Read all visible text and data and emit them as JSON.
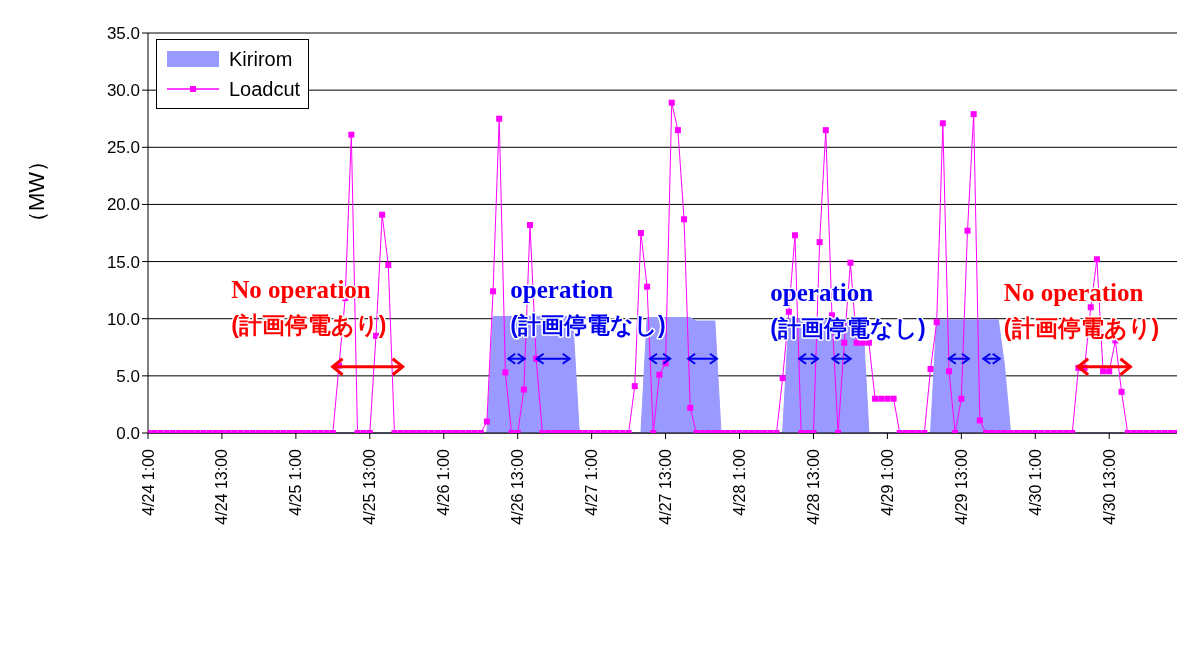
{
  "chart_data": {
    "type": "line",
    "ylabel": "（MW）",
    "categories": [
      "4/24 1:00",
      null,
      null,
      null,
      null,
      null,
      null,
      null,
      null,
      null,
      null,
      null,
      "4/24 13:00",
      null,
      null,
      null,
      null,
      null,
      null,
      null,
      null,
      null,
      null,
      null,
      "4/25 1:00",
      null,
      null,
      null,
      null,
      null,
      null,
      null,
      null,
      null,
      null,
      null,
      "4/25 13:00",
      null,
      null,
      null,
      null,
      null,
      null,
      null,
      null,
      null,
      null,
      null,
      "4/26 1:00",
      null,
      null,
      null,
      null,
      null,
      null,
      null,
      null,
      null,
      null,
      null,
      "4/26 13:00",
      null,
      null,
      null,
      null,
      null,
      null,
      null,
      null,
      null,
      null,
      null,
      "4/27 1:00",
      null,
      null,
      null,
      null,
      null,
      null,
      null,
      null,
      null,
      null,
      null,
      "4/27 13:00",
      null,
      null,
      null,
      null,
      null,
      null,
      null,
      null,
      null,
      null,
      null,
      "4/28 1:00",
      null,
      null,
      null,
      null,
      null,
      null,
      null,
      null,
      null,
      null,
      null,
      "4/28 13:00",
      null,
      null,
      null,
      null,
      null,
      null,
      null,
      null,
      null,
      null,
      null,
      "4/29 1:00",
      null,
      null,
      null,
      null,
      null,
      null,
      null,
      null,
      null,
      null,
      null,
      "4/29 13:00",
      null,
      null,
      null,
      null,
      null,
      null,
      null,
      null,
      null,
      null,
      null,
      "4/30 1:00",
      null,
      null,
      null,
      null,
      null,
      null,
      null,
      null,
      null,
      null,
      null,
      "4/30 13:00",
      null,
      null,
      null,
      null,
      null,
      null,
      null,
      null,
      null,
      null,
      null
    ],
    "series": [
      {
        "name": "Kirirom",
        "type": "area",
        "color": "#9999ff",
        "values": [
          0,
          0,
          0,
          0,
          0,
          0,
          0,
          0,
          0,
          0,
          0,
          0,
          0,
          0,
          0,
          0,
          0,
          0,
          0,
          0,
          0,
          0,
          0,
          0,
          0,
          0,
          0,
          0,
          0,
          0,
          0,
          0,
          0,
          0,
          0,
          0,
          0,
          0,
          0,
          0,
          0,
          0,
          0,
          0,
          0,
          0,
          0,
          0,
          0,
          0,
          0,
          0,
          0,
          0,
          0,
          0,
          10.2,
          10.2,
          10.2,
          10.2,
          10.2,
          10.2,
          10.2,
          10.2,
          10.2,
          10.2,
          10.2,
          10.2,
          10.2,
          9.3,
          0,
          0,
          0,
          0,
          0,
          0,
          0,
          0,
          0,
          0,
          0,
          10.1,
          10.1,
          10.1,
          10.1,
          10.1,
          10.1,
          10.1,
          10.1,
          9.8,
          9.8,
          9.8,
          9.8,
          0,
          0,
          0,
          0,
          0,
          0,
          0,
          0,
          0,
          0,
          0,
          10.0,
          10.0,
          10.0,
          10.0,
          10.0,
          10.0,
          9.9,
          9.9,
          9.9,
          9.9,
          9.9,
          9.9,
          9.9,
          0,
          0,
          0,
          0,
          0,
          0,
          0,
          0,
          0,
          0,
          0,
          9.9,
          9.9,
          9.9,
          9.9,
          9.9,
          9.9,
          9.9,
          9.9,
          9.9,
          9.9,
          9.9,
          5.9,
          0,
          0,
          0,
          0,
          0,
          0,
          0,
          0,
          0,
          0,
          0,
          0,
          0,
          0,
          0,
          0,
          0,
          0,
          0,
          0,
          0,
          0,
          0,
          0,
          0,
          0,
          0,
          0
        ]
      },
      {
        "name": "Loadcut",
        "color": "#ff00ff",
        "marker": "square",
        "values": [
          0,
          0,
          0,
          0,
          0,
          0,
          0,
          0,
          0,
          0,
          0,
          0,
          0,
          0,
          0,
          0,
          0,
          0,
          0,
          0,
          0,
          0,
          0,
          0,
          0,
          0,
          0,
          0,
          0,
          0,
          0,
          5.9,
          11.8,
          26.1,
          0,
          0,
          0,
          8.5,
          19.1,
          14.7,
          0,
          0,
          0,
          0,
          0,
          0,
          0,
          0,
          0,
          0,
          0,
          0,
          0,
          0,
          0,
          1.0,
          12.4,
          27.5,
          5.3,
          0,
          0,
          3.8,
          18.2,
          6.5,
          0,
          0,
          0,
          0,
          0,
          0,
          0,
          0,
          0,
          0,
          0,
          0,
          0,
          0,
          0,
          4.1,
          17.5,
          12.8,
          0,
          5.1,
          6.1,
          28.9,
          26.5,
          18.7,
          2.2,
          0,
          0,
          0,
          0,
          0,
          0,
          0,
          0,
          0,
          0,
          0,
          0,
          0,
          0,
          4.8,
          10.6,
          17.3,
          0,
          0,
          0,
          16.7,
          26.5,
          10.3,
          0,
          7.9,
          14.9,
          7.9,
          7.9,
          7.9,
          3.0,
          3.0,
          3.0,
          3.0,
          0,
          0,
          0,
          0,
          0,
          5.6,
          9.7,
          27.1,
          5.4,
          0,
          3.0,
          17.7,
          27.9,
          1.1,
          0,
          0,
          0,
          0,
          0,
          0,
          0,
          0,
          0,
          0,
          0,
          0,
          0,
          0,
          0,
          5.7,
          5.7,
          11.0,
          15.2,
          5.4,
          5.4,
          8.1,
          3.6,
          0,
          0,
          0,
          0,
          0,
          0,
          0,
          0,
          0
        ]
      }
    ],
    "ylim": [
      0,
      35
    ],
    "yticks": [
      {
        "value": 0,
        "label": "0.0"
      },
      {
        "value": 5,
        "label": "5.0"
      },
      {
        "value": 10,
        "label": "10.0"
      },
      {
        "value": 15,
        "label": "15.0"
      },
      {
        "value": 20,
        "label": "20.0"
      },
      {
        "value": 25,
        "label": "25.0"
      },
      {
        "value": 30,
        "label": "30.0"
      },
      {
        "value": 35,
        "label": "35.0"
      }
    ],
    "grid": "y",
    "legend": "top left",
    "annotations": [
      "No operation\n(計画停電あり)",
      "operation\n(計画停電なし)",
      "operation\n(計画停電なし)",
      "No operation\n(計画停電あり)"
    ]
  }
}
